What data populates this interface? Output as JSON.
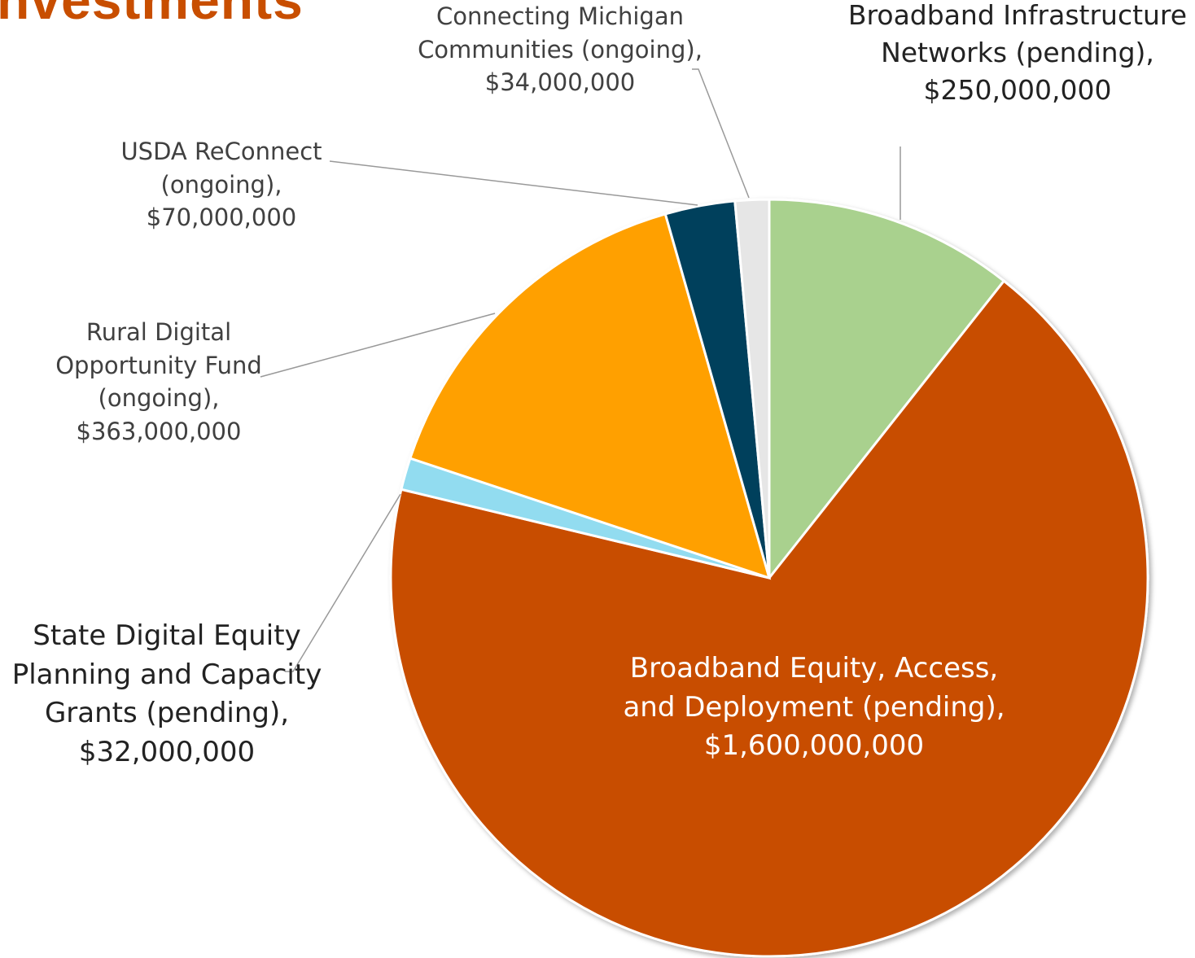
{
  "chart_data": {
    "type": "pie",
    "title": "nvestments",
    "categories": [
      "Broadband Infrastructure Networks (pending),",
      "Broadband Equity, Access, and Deployment (pending),",
      "State Digital Equity Planning and Capacity Grants (pending),",
      "Rural Digital Opportunity Fund (ongoing),",
      "USDA ReConnect (ongoing),",
      "Connecting Michigan Communities (ongoing),"
    ],
    "values": [
      250000000,
      1600000000,
      32000000,
      363000000,
      70000000,
      34000000
    ],
    "value_labels": [
      "$250,000,000",
      "$1,600,000,000",
      "$32,000,000",
      "$363,000,000",
      "$70,000,000",
      "$34,000,000"
    ],
    "colors": [
      "#a9d18e",
      "#c84e00",
      "#92dcf0",
      "#ffa000",
      "#003f5c",
      "#e6e6e6"
    ]
  }
}
